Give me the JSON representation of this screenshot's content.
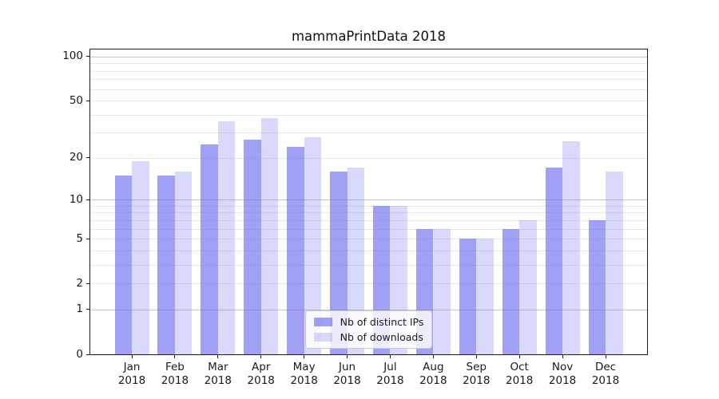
{
  "chart_data": {
    "type": "bar",
    "title": "mammaPrintData 2018",
    "categories": [
      "Jan 2018",
      "Feb 2018",
      "Mar 2018",
      "Apr 2018",
      "May 2018",
      "Jun 2018",
      "Jul 2018",
      "Aug 2018",
      "Sep 2018",
      "Oct 2018",
      "Nov 2018",
      "Dec 2018"
    ],
    "x_tick_month": [
      "Jan",
      "Feb",
      "Mar",
      "Apr",
      "May",
      "Jun",
      "Jul",
      "Aug",
      "Sep",
      "Oct",
      "Nov",
      "Dec"
    ],
    "x_tick_year": "2018",
    "series": [
      {
        "name": "Nb of distinct IPs",
        "key": "distinct-ips",
        "color": "rgba(102,102,238,0.62)",
        "values": [
          15,
          15,
          25,
          27,
          24,
          16,
          9,
          6,
          5,
          6,
          17,
          7
        ]
      },
      {
        "name": "Nb of downloads",
        "key": "downloads",
        "color": "rgba(102,102,238,0.25)",
        "values": [
          19,
          16,
          36,
          38,
          28,
          17,
          9,
          6,
          5,
          7,
          26,
          16
        ]
      }
    ],
    "yscale": "log1p",
    "y_tick_labels": [
      100,
      50,
      20,
      10,
      5,
      2,
      1,
      0
    ],
    "ylim": [
      0,
      112
    ],
    "grid": true,
    "legend_position": "lower center"
  },
  "colors": {
    "grid_major": "#c6c6c6",
    "grid_minor": "#e9e9e9",
    "axis": "#1c1c1c",
    "text": "#1a1a1a"
  }
}
